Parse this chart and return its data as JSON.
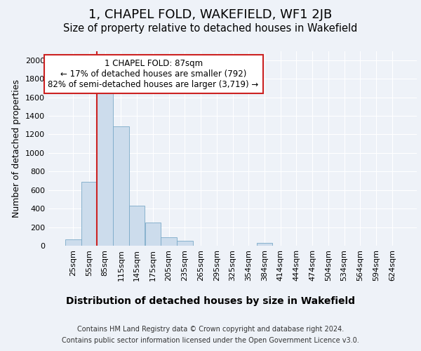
{
  "title": "1, CHAPEL FOLD, WAKEFIELD, WF1 2JB",
  "subtitle": "Size of property relative to detached houses in Wakefield",
  "xlabel": "Distribution of detached houses by size in Wakefield",
  "ylabel": "Number of detached properties",
  "footer_line1": "Contains HM Land Registry data © Crown copyright and database right 2024.",
  "footer_line2": "Contains public sector information licensed under the Open Government Licence v3.0.",
  "bin_labels": [
    "25sqm",
    "55sqm",
    "85sqm",
    "115sqm",
    "145sqm",
    "175sqm",
    "205sqm",
    "235sqm",
    "265sqm",
    "295sqm",
    "325sqm",
    "354sqm",
    "384sqm",
    "414sqm",
    "444sqm",
    "474sqm",
    "504sqm",
    "534sqm",
    "564sqm",
    "594sqm",
    "624sqm"
  ],
  "bar_values": [
    65,
    690,
    1640,
    1290,
    430,
    250,
    90,
    50,
    0,
    0,
    0,
    0,
    30,
    0,
    0,
    0,
    0,
    0,
    0,
    0,
    0
  ],
  "bar_color": "#ccdcec",
  "bar_edge_color": "#7aaac8",
  "red_line_bin_index": 2,
  "red_line_color": "#cc2222",
  "annotation_text_line1": "1 CHAPEL FOLD: 87sqm",
  "annotation_text_line2": "← 17% of detached houses are smaller (792)",
  "annotation_text_line3": "82% of semi-detached houses are larger (3,719) →",
  "annotation_box_facecolor": "#ffffff",
  "annotation_box_edgecolor": "#cc2222",
  "ylim": [
    0,
    2100
  ],
  "yticks": [
    0,
    200,
    400,
    600,
    800,
    1000,
    1200,
    1400,
    1600,
    1800,
    2000
  ],
  "background_color": "#eef2f8",
  "plot_background_color": "#eef2f8",
  "grid_color": "#ffffff",
  "title_fontsize": 13,
  "subtitle_fontsize": 10.5,
  "xlabel_fontsize": 10,
  "ylabel_fontsize": 9,
  "tick_fontsize": 8,
  "annotation_fontsize": 8.5,
  "footer_fontsize": 7
}
